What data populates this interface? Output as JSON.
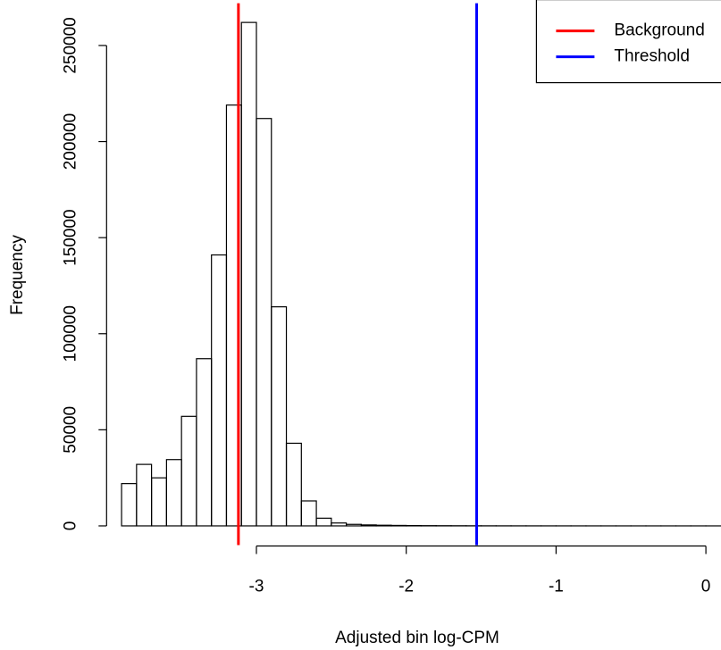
{
  "chart_data": {
    "type": "histogram",
    "xlabel": "Adjusted bin log-CPM",
    "ylabel": "Frequency",
    "bins": [
      -3.9,
      -3.8,
      -3.7,
      -3.6,
      -3.5,
      -3.4,
      -3.3,
      -3.2,
      -3.1,
      -3.0,
      -2.9,
      -2.8,
      -2.7,
      -2.6,
      -2.5,
      -2.4,
      -2.3,
      -2.2,
      -2.1,
      -2.0,
      -1.9,
      -1.8,
      -1.7,
      -1.6,
      -1.5,
      -1.4,
      -1.3,
      -1.2,
      -1.1,
      -1.0,
      -0.9,
      -0.8,
      -0.7,
      -0.6,
      -0.5,
      -0.4,
      -0.3,
      -0.2,
      -0.1,
      0.0,
      0.1
    ],
    "values": [
      22000,
      32000,
      25000,
      34500,
      57000,
      87000,
      141000,
      219000,
      262000,
      212000,
      114000,
      43000,
      13000,
      4000,
      1500,
      800,
      500,
      350,
      250,
      180,
      130,
      100,
      80,
      60,
      45,
      35,
      28,
      22,
      18,
      14,
      11,
      9,
      7,
      6,
      5,
      4,
      3,
      2,
      2,
      1
    ],
    "xlim": [
      -4.0,
      0.3
    ],
    "ylim": [
      -10000,
      272000
    ],
    "xticks": [
      -3,
      -2,
      -1,
      0
    ],
    "yticks": [
      0,
      50000,
      100000,
      150000,
      200000,
      250000
    ],
    "vlines": [
      {
        "name": "Background",
        "color": "#ff0000",
        "x": -3.12
      },
      {
        "name": "Threshold",
        "color": "#0000ff",
        "x": -1.53
      }
    ],
    "legend": "topright"
  }
}
